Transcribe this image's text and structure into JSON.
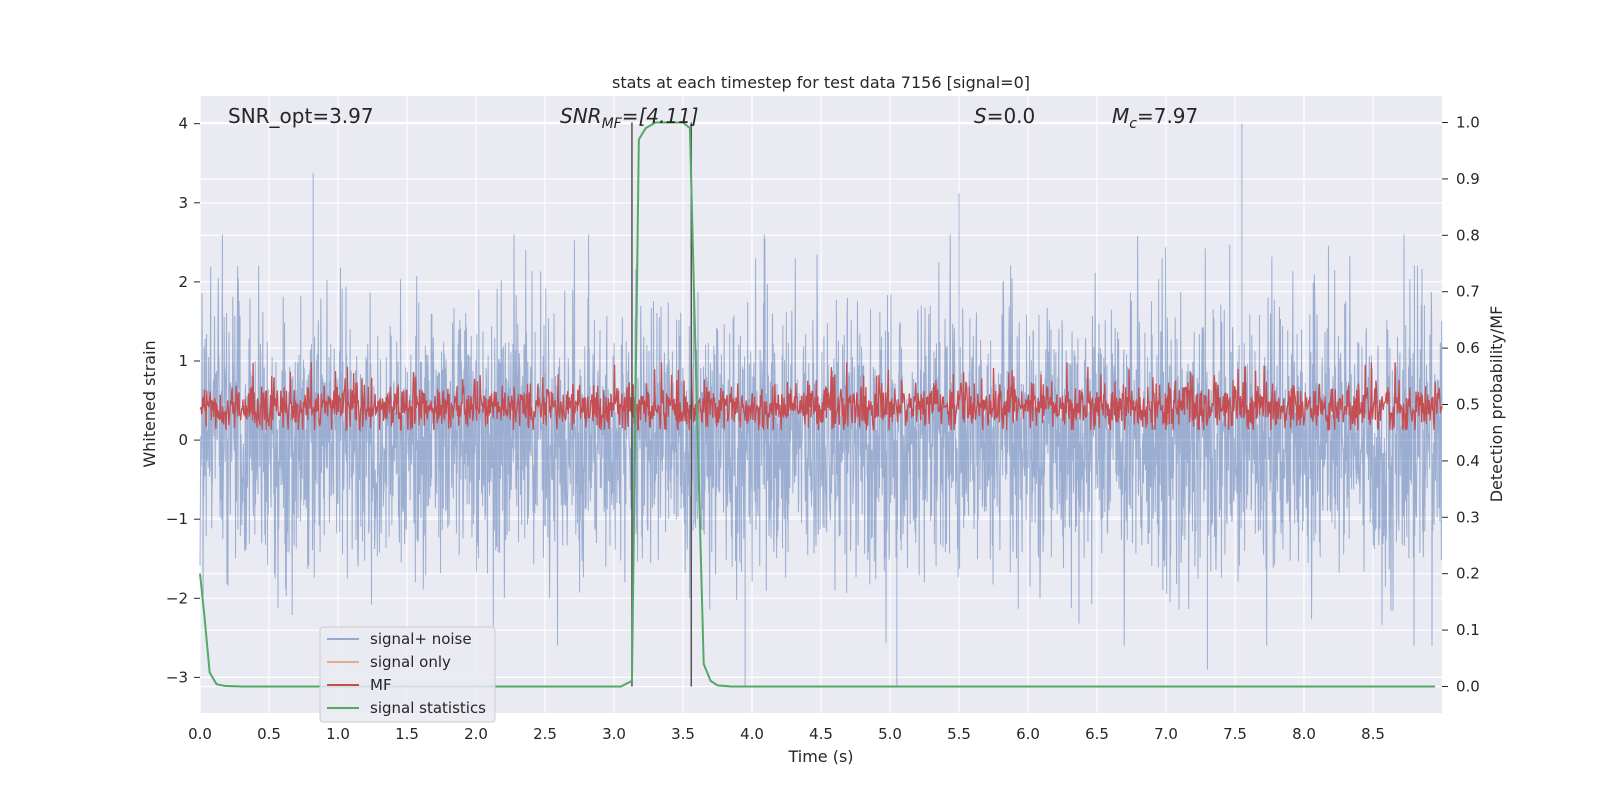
{
  "chart_data": {
    "type": "line",
    "title": "stats at each timestep for test data 7156 [signal=0]",
    "xlabel": "Time (s)",
    "ylabel": "Whitened strain",
    "y2label": "Detection probability/MF",
    "xlim": [
      0.0,
      9.0
    ],
    "ylim": [
      -3.45,
      4.35
    ],
    "y2lim": [
      -0.047,
      1.047
    ],
    "xticks": [
      "0.0",
      "0.5",
      "1.0",
      "1.5",
      "2.0",
      "2.5",
      "3.0",
      "3.5",
      "4.0",
      "4.5",
      "5.0",
      "5.5",
      "6.0",
      "6.5",
      "7.0",
      "7.5",
      "8.0",
      "8.5"
    ],
    "yticks": [
      "−3",
      "−2",
      "−1",
      "0",
      "1",
      "2",
      "3",
      "4"
    ],
    "y2ticks": [
      "0.0",
      "0.1",
      "0.2",
      "0.3",
      "0.4",
      "0.5",
      "0.6",
      "0.7",
      "0.8",
      "0.9",
      "1.0"
    ],
    "annotations": {
      "snr_opt": "SNR_opt=3.97",
      "snr_mf": "SNR",
      "snr_mf_sub": "MF",
      "snr_mf_val": "=[4.11]",
      "s_label": "S",
      "s_val": "=0.0",
      "mc_label": "M",
      "mc_sub": "c",
      "mc_val": "=7.97"
    },
    "vlines_x": [
      3.13,
      3.56
    ],
    "series": [
      {
        "name": "signal+ noise",
        "color": "#4c72b0",
        "description": "whitened strain noise, approx ±2.6 range"
      },
      {
        "name": "signal only",
        "color": "#dd8452",
        "values": []
      },
      {
        "name": "MF",
        "color": "#c44e52",
        "description": "matched filter output on right axis, approx 0.45-0.55"
      },
      {
        "name": "signal statistics",
        "color": "#55a868",
        "x": [
          0.0,
          0.03,
          0.07,
          0.12,
          0.18,
          0.3,
          1.0,
          2.0,
          3.0,
          3.05,
          3.13,
          3.18,
          3.23,
          3.3,
          3.4,
          3.5,
          3.55,
          3.6,
          3.65,
          3.7,
          3.75,
          3.85,
          4.5,
          6.0,
          8.0,
          8.95
        ],
        "y": [
          0.2,
          0.13,
          0.025,
          0.004,
          0.001,
          0.0,
          0.0,
          0.0,
          0.0,
          0.0,
          0.01,
          0.97,
          0.99,
          1.0,
          1.0,
          1.0,
          0.99,
          0.5,
          0.04,
          0.01,
          0.002,
          0.0,
          0.0,
          0.0,
          0.0,
          0.0
        ]
      }
    ],
    "legend": {
      "position": "lower-left"
    }
  }
}
